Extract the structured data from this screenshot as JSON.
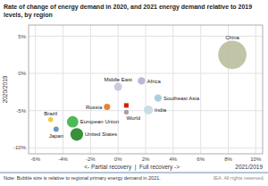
{
  "chart_data": {
    "type": "bubble",
    "title": "Rate of change of energy demand in 2020, and 2021 energy demand relative to 2019\nlevels, by region",
    "xlabel": "<- Partial recovery  |  Full recovery ->",
    "ylabel": "2020/2019",
    "annotations": [
      "2021/2019",
      "Note: Bubble size is relative to regional primary energy demand in 2021.",
      "IEA. All rights reserved."
    ],
    "xlim": [
      -6.5,
      10.5
    ],
    "ylim": [
      -10.8,
      6.5
    ],
    "xticks": [
      {
        "value": -6,
        "label": "-6%"
      },
      {
        "value": -4,
        "label": "-4%"
      },
      {
        "value": -2,
        "label": "-2%"
      },
      {
        "value": 0,
        "label": "0%"
      },
      {
        "value": 2,
        "label": "2%"
      },
      {
        "value": 4,
        "label": "4%"
      },
      {
        "value": 6,
        "label": "6%"
      },
      {
        "value": 8,
        "label": "8%"
      },
      {
        "value": 10,
        "label": "10%"
      }
    ],
    "yticks": [
      {
        "value": -10,
        "label": "-10%"
      },
      {
        "value": -5,
        "label": "-5%"
      },
      {
        "value": 0,
        "label": "0%"
      },
      {
        "value": 5,
        "label": "5%"
      }
    ],
    "grid": true,
    "series": [
      {
        "labels": [
          "China",
          "India",
          "Southeast Asia",
          "Africa",
          "Middle East",
          "Russia",
          "World",
          "European Union",
          "United States",
          "Japan",
          "Brazil"
        ],
        "x": [
          8.3,
          2.2,
          2.9,
          1.7,
          0.0,
          -0.8,
          0.6,
          -3.3,
          -3.0,
          -4.5,
          -4.9
        ],
        "values": [
          2.5,
          -4.9,
          -3.3,
          -1.0,
          -1.8,
          -4.5,
          -5.2,
          -6.5,
          -8.2,
          -7.5,
          -6.2
        ],
        "sizes": [
          3200,
          320,
          220,
          220,
          260,
          160,
          90,
          520,
          640,
          110,
          100
        ],
        "colors": [
          "#b8bc9a",
          "#c2d8e2",
          "#9fc8d8",
          "#b3aecf",
          "#c8c0dc",
          "#e8701a",
          "#a09098",
          "#35b040",
          "#1e8020",
          "#5a88b0",
          "#f2c320"
        ]
      },
      {
        "x": [
          0.6
        ],
        "values": [
          -4.3
        ],
        "color": "#cc2200",
        "marker": "square"
      }
    ]
  }
}
